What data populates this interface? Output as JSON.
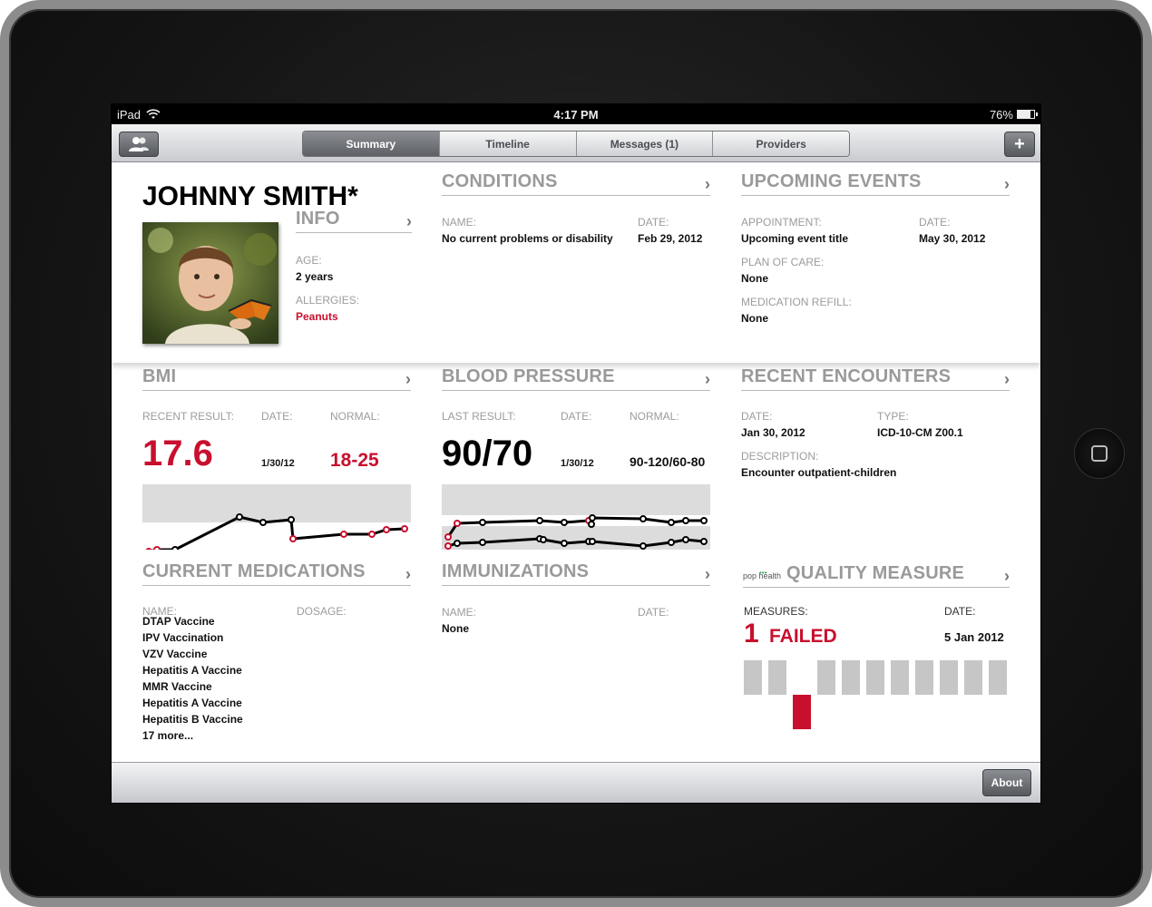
{
  "status_bar": {
    "device": "iPad",
    "time": "4:17 PM",
    "battery": "76%",
    "battery_level": 0.76
  },
  "nav": {
    "tabs": [
      {
        "label": "Summary",
        "active": true
      },
      {
        "label": "Timeline",
        "active": false
      },
      {
        "label": "Messages (1)",
        "active": false
      },
      {
        "label": "Providers",
        "active": false
      }
    ],
    "left_icon": "people-icon",
    "right_icon": "plus-icon",
    "right_label": "+"
  },
  "patient": {
    "name": "JOHNNY SMITH*"
  },
  "info": {
    "title": "INFO",
    "age_label": "AGE:",
    "age": "2 years",
    "allergies_label": "ALLERGIES:",
    "allergies": "Peanuts"
  },
  "conditions": {
    "title": "CONDITIONS",
    "name_label": "NAME:",
    "date_label": "DATE:",
    "name": "No current problems or disability",
    "date": "Feb 29, 2012"
  },
  "upcoming": {
    "title": "UPCOMING EVENTS",
    "appointment_label": "APPOINTMENT:",
    "appointment": "Upcoming event title",
    "date_label": "DATE:",
    "date": "May 30, 2012",
    "plan_label": "PLAN OF CARE:",
    "plan": "None",
    "refill_label": "MEDICATION REFILL:",
    "refill": "None"
  },
  "bmi": {
    "title": "BMI",
    "result_label": "RECENT RESULT:",
    "date_label": "DATE:",
    "normal_label": "NORMAL:",
    "result": "17.6",
    "date": "1/30/12",
    "normal": "18-25"
  },
  "blood_pressure": {
    "title": "BLOOD PRESSURE",
    "result_label": "LAST RESULT:",
    "date_label": "DATE:",
    "normal_label": "NORMAL:",
    "result": "90/70",
    "date": "1/30/12",
    "normal": "90-120/60-80"
  },
  "encounters": {
    "title": "RECENT ENCOUNTERS",
    "date_label": "DATE:",
    "date": "Jan 30, 2012",
    "type_label": "TYPE:",
    "type": "ICD-10-CM Z00.1",
    "desc_label": "DESCRIPTION:",
    "desc": "Encounter outpatient-children"
  },
  "medications": {
    "title": "CURRENT MEDICATIONS",
    "name_label": "NAME:",
    "dosage_label": "DOSAGE:",
    "items": [
      "DTAP Vaccine",
      "IPV Vaccination",
      "VZV Vaccine",
      "Hepatitis A Vaccine",
      "MMR Vaccine",
      "Hepatitis A Vaccine",
      "Hepatitis B Vaccine",
      "17 more..."
    ]
  },
  "immunizations": {
    "title": "IMMUNIZATIONS",
    "name_label": "NAME:",
    "date_label": "DATE:",
    "name": "None"
  },
  "quality": {
    "logo_text": "pop health",
    "title": "QUALITY MEASURE",
    "measures_label": "MEASURES:",
    "date_label": "DATE:",
    "count": "1",
    "status": "FAILED",
    "date": "5 Jan 2012",
    "measures_total": 11,
    "failed_index": 2
  },
  "footer": {
    "about_label": "About"
  },
  "colors": {
    "accent_red": "#c8102e",
    "normal_band": "#dcdcdc",
    "heading_gray": "#9a9a9a"
  }
}
